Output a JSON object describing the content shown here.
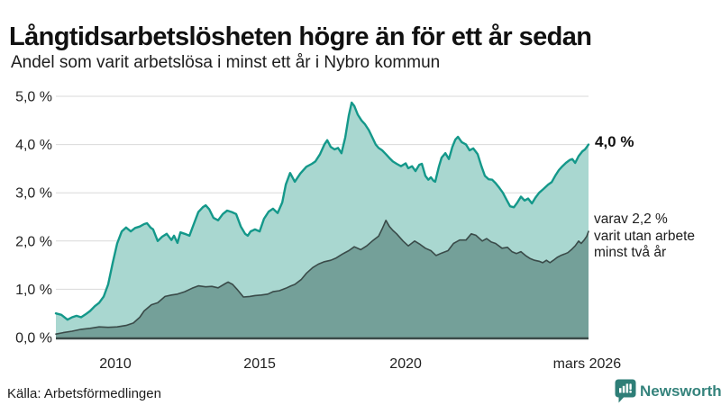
{
  "header": {
    "title": "Långtidsarbetslösheten högre än för ett år sedan",
    "subtitle": "Andel som varit arbetslösa i minst ett år i Nybro kommun"
  },
  "annotations": {
    "end_value": "4,0 %",
    "sub_lines": [
      "varav 2,2 %",
      "varit utan arbete",
      "minst två år"
    ]
  },
  "footer": {
    "source": "Källa: Arbetsförmedlingen",
    "brand": "Newsworthy"
  },
  "colors": {
    "accent_teal": "#14988a",
    "light_fill": "#a9d7d0",
    "dark_fill": "#74a099",
    "dark_line": "#3a4b49",
    "grid": "#d9d9d9",
    "axis": "#3b4a48",
    "text": "#222222",
    "brand_teal": "#2e7e77"
  },
  "chart_data": {
    "type": "area",
    "title": "Långtidsarbetslösheten högre än för ett år sedan",
    "subtitle": "Andel som varit arbetslösa i minst ett år i Nybro kommun",
    "xlabel": "",
    "ylabel": "",
    "x_domain": [
      2008.0,
      2026.35
    ],
    "ylim": [
      0,
      5
    ],
    "grid": true,
    "legend": "none",
    "y_ticks": [
      {
        "v": 0,
        "label": "0,0 %"
      },
      {
        "v": 1,
        "label": "1,0 %"
      },
      {
        "v": 2,
        "label": "2,0 %"
      },
      {
        "v": 3,
        "label": "3,0 %"
      },
      {
        "v": 4,
        "label": "4,0 %"
      },
      {
        "v": 5,
        "label": "5,0 %"
      }
    ],
    "x_ticks": [
      {
        "t": 2010.05,
        "label": "2010"
      },
      {
        "t": 2015.02,
        "label": "2015"
      },
      {
        "t": 2020.05,
        "label": "2020"
      },
      {
        "t": 2026.3,
        "label": "mars 2026"
      }
    ],
    "series": [
      {
        "name": "Andel arbetslösa minst ett år",
        "line_color": "#14988a",
        "fill_color": "#a9d7d0",
        "line_width": 2.4,
        "end_label": "4,0 %",
        "points": [
          [
            2008.0,
            0.5
          ],
          [
            2008.19,
            0.47
          ],
          [
            2008.4,
            0.37
          ],
          [
            2008.56,
            0.42
          ],
          [
            2008.71,
            0.45
          ],
          [
            2008.87,
            0.42
          ],
          [
            2009.02,
            0.48
          ],
          [
            2009.18,
            0.55
          ],
          [
            2009.34,
            0.65
          ],
          [
            2009.49,
            0.72
          ],
          [
            2009.65,
            0.85
          ],
          [
            2009.8,
            1.1
          ],
          [
            2009.96,
            1.55
          ],
          [
            2010.11,
            1.95
          ],
          [
            2010.27,
            2.2
          ],
          [
            2010.42,
            2.28
          ],
          [
            2010.58,
            2.2
          ],
          [
            2010.73,
            2.27
          ],
          [
            2010.89,
            2.3
          ],
          [
            2011.04,
            2.35
          ],
          [
            2011.14,
            2.37
          ],
          [
            2011.26,
            2.28
          ],
          [
            2011.35,
            2.24
          ],
          [
            2011.51,
            2.0
          ],
          [
            2011.66,
            2.09
          ],
          [
            2011.82,
            2.15
          ],
          [
            2011.98,
            2.02
          ],
          [
            2012.07,
            2.11
          ],
          [
            2012.19,
            1.96
          ],
          [
            2012.29,
            2.18
          ],
          [
            2012.44,
            2.15
          ],
          [
            2012.6,
            2.11
          ],
          [
            2012.75,
            2.35
          ],
          [
            2012.91,
            2.6
          ],
          [
            2013.06,
            2.7
          ],
          [
            2013.16,
            2.74
          ],
          [
            2013.28,
            2.66
          ],
          [
            2013.43,
            2.48
          ],
          [
            2013.59,
            2.43
          ],
          [
            2013.75,
            2.56
          ],
          [
            2013.9,
            2.63
          ],
          [
            2014.06,
            2.6
          ],
          [
            2014.21,
            2.56
          ],
          [
            2014.37,
            2.3
          ],
          [
            2014.52,
            2.15
          ],
          [
            2014.61,
            2.11
          ],
          [
            2014.71,
            2.2
          ],
          [
            2014.86,
            2.24
          ],
          [
            2015.02,
            2.2
          ],
          [
            2015.17,
            2.46
          ],
          [
            2015.33,
            2.61
          ],
          [
            2015.48,
            2.67
          ],
          [
            2015.64,
            2.58
          ],
          [
            2015.8,
            2.8
          ],
          [
            2015.92,
            3.17
          ],
          [
            2016.07,
            3.41
          ],
          [
            2016.23,
            3.23
          ],
          [
            2016.42,
            3.4
          ],
          [
            2016.63,
            3.54
          ],
          [
            2016.82,
            3.6
          ],
          [
            2016.94,
            3.65
          ],
          [
            2017.1,
            3.8
          ],
          [
            2017.25,
            4.0
          ],
          [
            2017.35,
            4.09
          ],
          [
            2017.47,
            3.95
          ],
          [
            2017.6,
            3.9
          ],
          [
            2017.72,
            3.93
          ],
          [
            2017.84,
            3.82
          ],
          [
            2017.97,
            4.15
          ],
          [
            2018.09,
            4.6
          ],
          [
            2018.19,
            4.87
          ],
          [
            2018.28,
            4.8
          ],
          [
            2018.4,
            4.62
          ],
          [
            2018.53,
            4.5
          ],
          [
            2018.65,
            4.42
          ],
          [
            2018.78,
            4.3
          ],
          [
            2018.9,
            4.15
          ],
          [
            2019.02,
            4.0
          ],
          [
            2019.12,
            3.93
          ],
          [
            2019.24,
            3.88
          ],
          [
            2019.37,
            3.8
          ],
          [
            2019.49,
            3.72
          ],
          [
            2019.61,
            3.65
          ],
          [
            2019.74,
            3.6
          ],
          [
            2019.89,
            3.55
          ],
          [
            2020.05,
            3.61
          ],
          [
            2020.14,
            3.51
          ],
          [
            2020.27,
            3.55
          ],
          [
            2020.39,
            3.45
          ],
          [
            2020.52,
            3.58
          ],
          [
            2020.61,
            3.6
          ],
          [
            2020.73,
            3.35
          ],
          [
            2020.83,
            3.27
          ],
          [
            2020.92,
            3.32
          ],
          [
            2021.01,
            3.25
          ],
          [
            2021.07,
            3.23
          ],
          [
            2021.2,
            3.55
          ],
          [
            2021.29,
            3.73
          ],
          [
            2021.42,
            3.82
          ],
          [
            2021.54,
            3.7
          ],
          [
            2021.66,
            3.95
          ],
          [
            2021.76,
            4.1
          ],
          [
            2021.85,
            4.16
          ],
          [
            2021.98,
            4.05
          ],
          [
            2022.13,
            4.0
          ],
          [
            2022.25,
            3.88
          ],
          [
            2022.38,
            3.92
          ],
          [
            2022.47,
            3.85
          ],
          [
            2022.53,
            3.8
          ],
          [
            2022.66,
            3.55
          ],
          [
            2022.78,
            3.35
          ],
          [
            2022.91,
            3.28
          ],
          [
            2023.03,
            3.27
          ],
          [
            2023.15,
            3.2
          ],
          [
            2023.28,
            3.1
          ],
          [
            2023.4,
            3.0
          ],
          [
            2023.53,
            2.85
          ],
          [
            2023.65,
            2.72
          ],
          [
            2023.78,
            2.7
          ],
          [
            2023.9,
            2.8
          ],
          [
            2024.02,
            2.92
          ],
          [
            2024.15,
            2.84
          ],
          [
            2024.27,
            2.88
          ],
          [
            2024.4,
            2.78
          ],
          [
            2024.52,
            2.9
          ],
          [
            2024.65,
            3.0
          ],
          [
            2024.8,
            3.08
          ],
          [
            2024.96,
            3.17
          ],
          [
            2025.08,
            3.22
          ],
          [
            2025.2,
            3.35
          ],
          [
            2025.33,
            3.47
          ],
          [
            2025.45,
            3.55
          ],
          [
            2025.57,
            3.62
          ],
          [
            2025.7,
            3.68
          ],
          [
            2025.79,
            3.7
          ],
          [
            2025.89,
            3.62
          ],
          [
            2026.01,
            3.76
          ],
          [
            2026.14,
            3.86
          ],
          [
            2026.23,
            3.9
          ],
          [
            2026.29,
            3.95
          ],
          [
            2026.35,
            4.0
          ]
        ]
      },
      {
        "name": "varav utan arbete minst två år",
        "line_color": "#3a4b49",
        "fill_color": "#74a099",
        "line_width": 1.6,
        "end_label": "varav 2,2 % varit utan arbete minst två år",
        "points": [
          [
            2008.0,
            0.07
          ],
          [
            2008.25,
            0.1
          ],
          [
            2008.56,
            0.13
          ],
          [
            2008.87,
            0.17
          ],
          [
            2009.18,
            0.19
          ],
          [
            2009.49,
            0.22
          ],
          [
            2009.8,
            0.21
          ],
          [
            2010.11,
            0.22
          ],
          [
            2010.42,
            0.25
          ],
          [
            2010.67,
            0.3
          ],
          [
            2010.89,
            0.42
          ],
          [
            2011.04,
            0.55
          ],
          [
            2011.29,
            0.68
          ],
          [
            2011.51,
            0.72
          ],
          [
            2011.76,
            0.85
          ],
          [
            2011.98,
            0.88
          ],
          [
            2012.19,
            0.9
          ],
          [
            2012.44,
            0.95
          ],
          [
            2012.69,
            1.02
          ],
          [
            2012.91,
            1.07
          ],
          [
            2013.16,
            1.05
          ],
          [
            2013.37,
            1.06
          ],
          [
            2013.59,
            1.03
          ],
          [
            2013.84,
            1.12
          ],
          [
            2013.93,
            1.15
          ],
          [
            2014.09,
            1.1
          ],
          [
            2014.24,
            1.0
          ],
          [
            2014.46,
            0.84
          ],
          [
            2014.68,
            0.85
          ],
          [
            2014.86,
            0.87
          ],
          [
            2015.08,
            0.88
          ],
          [
            2015.3,
            0.9
          ],
          [
            2015.48,
            0.95
          ],
          [
            2015.7,
            0.97
          ],
          [
            2015.92,
            1.02
          ],
          [
            2016.1,
            1.07
          ],
          [
            2016.23,
            1.1
          ],
          [
            2016.45,
            1.2
          ],
          [
            2016.63,
            1.33
          ],
          [
            2016.85,
            1.45
          ],
          [
            2017.04,
            1.52
          ],
          [
            2017.25,
            1.57
          ],
          [
            2017.47,
            1.6
          ],
          [
            2017.66,
            1.65
          ],
          [
            2017.87,
            1.73
          ],
          [
            2018.09,
            1.8
          ],
          [
            2018.28,
            1.88
          ],
          [
            2018.5,
            1.82
          ],
          [
            2018.71,
            1.9
          ],
          [
            2018.9,
            2.0
          ],
          [
            2019.12,
            2.1
          ],
          [
            2019.24,
            2.25
          ],
          [
            2019.37,
            2.43
          ],
          [
            2019.49,
            2.3
          ],
          [
            2019.61,
            2.22
          ],
          [
            2019.74,
            2.15
          ],
          [
            2019.96,
            2.0
          ],
          [
            2020.14,
            1.9
          ],
          [
            2020.36,
            2.0
          ],
          [
            2020.55,
            1.93
          ],
          [
            2020.73,
            1.85
          ],
          [
            2020.92,
            1.8
          ],
          [
            2021.1,
            1.7
          ],
          [
            2021.29,
            1.75
          ],
          [
            2021.51,
            1.8
          ],
          [
            2021.7,
            1.95
          ],
          [
            2021.91,
            2.02
          ],
          [
            2022.13,
            2.02
          ],
          [
            2022.31,
            2.15
          ],
          [
            2022.47,
            2.12
          ],
          [
            2022.69,
            2.0
          ],
          [
            2022.84,
            2.05
          ],
          [
            2023.0,
            1.98
          ],
          [
            2023.15,
            1.95
          ],
          [
            2023.37,
            1.85
          ],
          [
            2023.56,
            1.87
          ],
          [
            2023.71,
            1.78
          ],
          [
            2023.87,
            1.74
          ],
          [
            2024.02,
            1.78
          ],
          [
            2024.18,
            1.7
          ],
          [
            2024.33,
            1.64
          ],
          [
            2024.49,
            1.6
          ],
          [
            2024.65,
            1.58
          ],
          [
            2024.77,
            1.55
          ],
          [
            2024.9,
            1.6
          ],
          [
            2025.02,
            1.55
          ],
          [
            2025.14,
            1.6
          ],
          [
            2025.27,
            1.66
          ],
          [
            2025.39,
            1.7
          ],
          [
            2025.52,
            1.73
          ],
          [
            2025.64,
            1.76
          ],
          [
            2025.76,
            1.82
          ],
          [
            2025.89,
            1.9
          ],
          [
            2026.01,
            2.0
          ],
          [
            2026.1,
            1.95
          ],
          [
            2026.2,
            2.02
          ],
          [
            2026.29,
            2.1
          ],
          [
            2026.35,
            2.2
          ]
        ]
      }
    ]
  }
}
